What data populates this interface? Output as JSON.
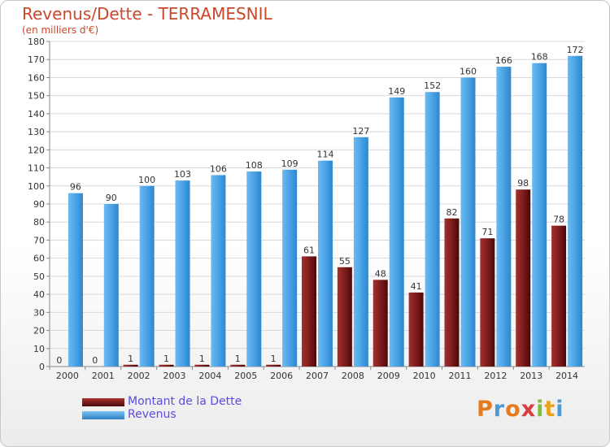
{
  "chart_data": {
    "type": "bar",
    "title": "Revenus/Dette - TERRAMESNIL",
    "subtitle": "(en milliers d'€)",
    "categories": [
      "2000",
      "2001",
      "2002",
      "2003",
      "2004",
      "2005",
      "2006",
      "2007",
      "2008",
      "2009",
      "2010",
      "2011",
      "2012",
      "2013",
      "2014"
    ],
    "series": [
      {
        "name": "Montant de la Dette",
        "color": "#7a1a1a",
        "values": [
          0,
          0,
          1,
          1,
          1,
          1,
          1,
          61,
          55,
          48,
          41,
          82,
          71,
          98,
          78
        ]
      },
      {
        "name": "Revenus",
        "color": "#4aa3e6",
        "values": [
          96,
          90,
          100,
          103,
          106,
          108,
          109,
          114,
          127,
          149,
          152,
          160,
          166,
          168,
          172
        ]
      }
    ],
    "ylim": [
      0,
      180
    ],
    "ytick_step": 10,
    "grid": true,
    "legend_position": "bottom-left"
  },
  "logo": {
    "letters": [
      "P",
      "r",
      "o",
      "x",
      "i",
      "t",
      "i"
    ],
    "colors": [
      "#e87a1e",
      "#4a9ad8",
      "#e87a1e",
      "#d93c3c",
      "#7cbf3a",
      "#e8a21e",
      "#4a9ad8"
    ]
  }
}
